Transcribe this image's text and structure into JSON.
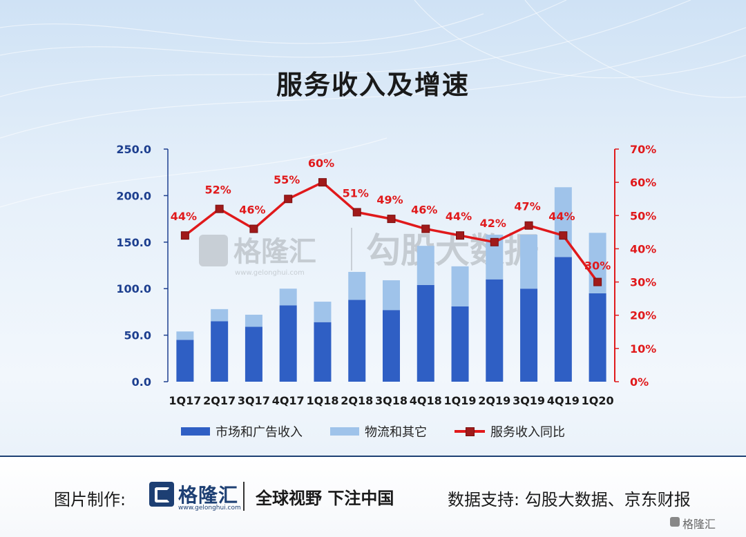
{
  "title": "服务收入及增速",
  "chart_data": {
    "type": "bar",
    "stacked": true,
    "categories": [
      "1Q17",
      "2Q17",
      "3Q17",
      "4Q17",
      "1Q18",
      "2Q18",
      "3Q18",
      "4Q18",
      "1Q19",
      "2Q19",
      "3Q19",
      "4Q19",
      "1Q20"
    ],
    "series": [
      {
        "name": "市场和广告收入",
        "type": "bar",
        "axis": "left",
        "color": "#2f5fc4",
        "values": [
          45,
          65,
          59,
          82,
          64,
          88,
          77,
          104,
          81,
          110,
          100,
          134,
          95
        ]
      },
      {
        "name": "物流和其它",
        "type": "bar",
        "axis": "left",
        "color": "#9fc3ea",
        "values": [
          9,
          13,
          13,
          18,
          22,
          30,
          32,
          42,
          43,
          48,
          58,
          75,
          65
        ]
      },
      {
        "name": "服务收入同比",
        "type": "line",
        "axis": "right",
        "color": "#e0191b",
        "values": [
          44,
          52,
          46,
          55,
          60,
          51,
          49,
          46,
          44,
          42,
          47,
          44,
          30
        ],
        "labels": [
          "44%",
          "52%",
          "46%",
          "55%",
          "60%",
          "51%",
          "49%",
          "46%",
          "44%",
          "42%",
          "47%",
          "44%",
          "30%"
        ]
      }
    ],
    "y_left": {
      "ylim": [
        0,
        250
      ],
      "ticks": [
        "0.0",
        "50.0",
        "100.0",
        "150.0",
        "200.0",
        "250.0"
      ],
      "color": "#1d3f8f"
    },
    "y_right": {
      "ylim": [
        0,
        70
      ],
      "ticks": [
        "0%",
        "10%",
        "20%",
        "30%",
        "40%",
        "50%",
        "60%",
        "70%"
      ],
      "color": "#e0191b"
    },
    "legend": "bottom-center"
  },
  "watermark": {
    "brand": "格隆汇",
    "url": "www.gelonghui.com",
    "partner": "勾股大数据"
  },
  "footer": {
    "credit_label": "图片制作:",
    "logo_text": "格隆汇",
    "logo_url": "www.gelonghui.com",
    "slogan": "全球视野 下注中国",
    "source": "数据支持: 勾股大数据、京东财报",
    "corner_mark": "格隆汇"
  }
}
